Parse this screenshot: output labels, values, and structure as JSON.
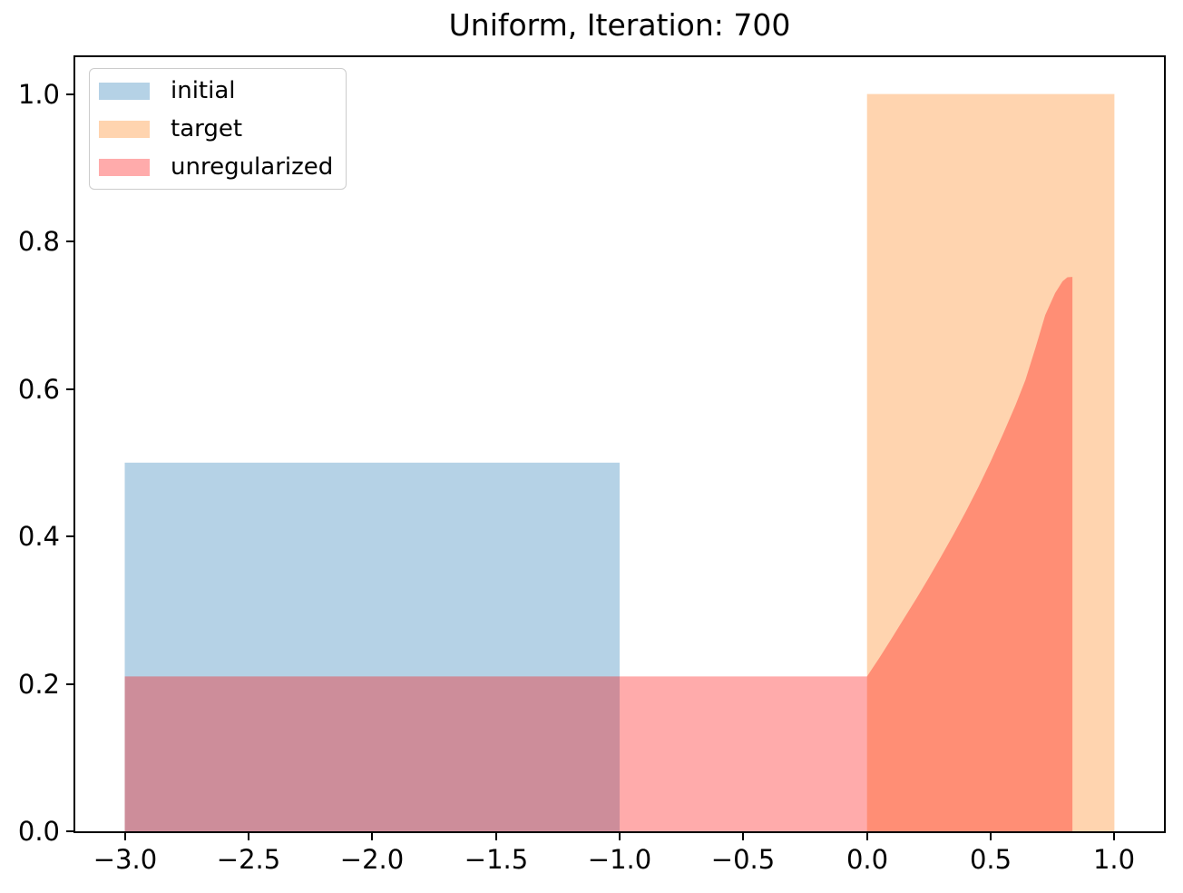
{
  "chart_data": {
    "type": "area",
    "title": "Uniform, Iteration: 700",
    "xlabel": "",
    "ylabel": "",
    "xlim": [
      -3.2,
      1.2
    ],
    "ylim": [
      0,
      1.05
    ],
    "grid": false,
    "xticks": [
      {
        "v": -3.0,
        "label": "−3.0"
      },
      {
        "v": -2.5,
        "label": "−2.5"
      },
      {
        "v": -2.0,
        "label": "−2.0"
      },
      {
        "v": -1.5,
        "label": "−1.5"
      },
      {
        "v": -1.0,
        "label": "−1.0"
      },
      {
        "v": -0.5,
        "label": "−0.5"
      },
      {
        "v": 0.0,
        "label": "0.0"
      },
      {
        "v": 0.5,
        "label": "0.5"
      },
      {
        "v": 1.0,
        "label": "1.0"
      }
    ],
    "yticks": [
      {
        "v": 0.0,
        "label": "0.0"
      },
      {
        "v": 0.2,
        "label": "0.2"
      },
      {
        "v": 0.4,
        "label": "0.4"
      },
      {
        "v": 0.6,
        "label": "0.6"
      },
      {
        "v": 0.8,
        "label": "0.8"
      },
      {
        "v": 1.0,
        "label": "1.0"
      }
    ],
    "series": [
      {
        "name": "initial",
        "kind": "uniform-rect",
        "x_range": [
          -3.0,
          -1.0
        ],
        "height": 0.5,
        "base_color": "#1f77b4",
        "fill": "rgba(31,119,180,0.33)"
      },
      {
        "name": "target",
        "kind": "uniform-rect",
        "x_range": [
          0.0,
          1.0
        ],
        "height": 1.0,
        "base_color": "#ff7f0e",
        "fill": "rgba(255,127,14,0.335)"
      },
      {
        "name": "unregularized",
        "kind": "filled-curve",
        "flat_level": 0.21,
        "peak": [
          0.83,
          0.752
        ],
        "points": [
          [
            -3.0,
            0.21
          ],
          [
            0.0,
            0.21
          ],
          [
            0.05,
            0.2355
          ],
          [
            0.1,
            0.262
          ],
          [
            0.15,
            0.289
          ],
          [
            0.2,
            0.316
          ],
          [
            0.25,
            0.344
          ],
          [
            0.3,
            0.373
          ],
          [
            0.35,
            0.403
          ],
          [
            0.4,
            0.434
          ],
          [
            0.45,
            0.467
          ],
          [
            0.5,
            0.502
          ],
          [
            0.55,
            0.539
          ],
          [
            0.6,
            0.578
          ],
          [
            0.64,
            0.612
          ],
          [
            0.68,
            0.655
          ],
          [
            0.72,
            0.7
          ],
          [
            0.76,
            0.73
          ],
          [
            0.79,
            0.746
          ],
          [
            0.81,
            0.7515
          ],
          [
            0.83,
            0.752
          ]
        ],
        "base_color": "#ff0000",
        "fill": "rgba(255,0,0,0.33)"
      }
    ],
    "legend": {
      "location": "upper left",
      "entries": [
        {
          "label": "initial",
          "fill": "rgba(31,119,180,0.33)"
        },
        {
          "label": "target",
          "fill": "rgba(255,127,14,0.335)"
        },
        {
          "label": "unregularized",
          "fill": "rgba(255,0,0,0.33)"
        }
      ]
    },
    "colors": {
      "spine": "#000000",
      "text": "#000000",
      "legend_border": "#cccccc",
      "background": "#ffffff"
    }
  }
}
